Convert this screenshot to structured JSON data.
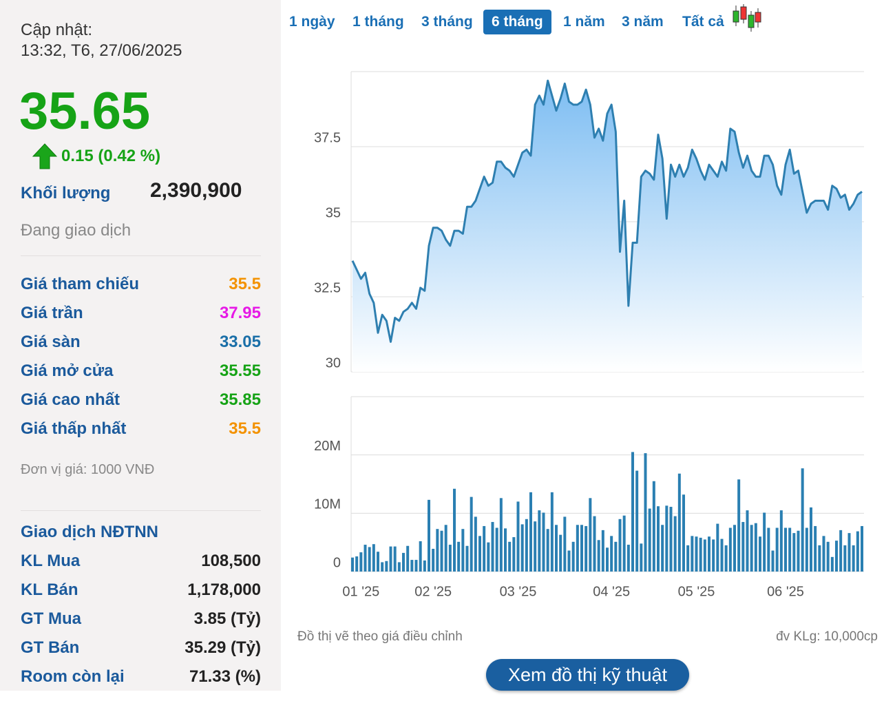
{
  "header": {
    "update_label": "Cập nhật:",
    "update_time": "13:32, T6, 27/06/2025",
    "price": "35.65",
    "change": "0.15 (0.42 %)",
    "volume_label": "Khối lượng",
    "volume": "2,390,900",
    "status": "Đang giao dịch"
  },
  "price_table": [
    {
      "label": "Giá tham chiếu",
      "value": "35.5",
      "color": "#f39200"
    },
    {
      "label": "Giá trần",
      "value": "37.95",
      "color": "#e619e6"
    },
    {
      "label": "Giá sàn",
      "value": "33.05",
      "color": "#1a6fa8"
    },
    {
      "label": "Giá mở cửa",
      "value": "35.55",
      "color": "#16a316"
    },
    {
      "label": "Giá cao nhất",
      "value": "35.85",
      "color": "#16a316"
    },
    {
      "label": "Giá thấp nhất",
      "value": "35.5",
      "color": "#f39200"
    }
  ],
  "unit_note": "Đơn vị giá: 1000 VNĐ",
  "foreign": {
    "title": "Giao dịch NĐTNN",
    "rows": [
      {
        "label": "KL Mua",
        "value": "108,500"
      },
      {
        "label": "KL Bán",
        "value": "1,178,000"
      },
      {
        "label": "GT Mua",
        "value": "3.85 (Tỷ)"
      },
      {
        "label": "GT Bán",
        "value": "35.29 (Tỷ)"
      },
      {
        "label": "Room còn lại",
        "value": "71.33 (%)"
      }
    ]
  },
  "tabs": [
    "1 ngày",
    "1 tháng",
    "3 tháng",
    "6 tháng",
    "1 năm",
    "3 năm",
    "Tất cả"
  ],
  "active_tab": 3,
  "chart_data": [
    {
      "type": "area",
      "color": "#2e7fb0",
      "ylim": [
        30,
        40
      ],
      "yticks": [
        30,
        32.5,
        35,
        37.5
      ],
      "grid": true,
      "values": [
        33.7,
        33.4,
        33.1,
        33.3,
        32.6,
        32.3,
        31.3,
        31.9,
        31.7,
        31.0,
        31.8,
        31.7,
        32.0,
        32.1,
        32.3,
        32.1,
        32.8,
        32.7,
        34.2,
        34.8,
        34.8,
        34.7,
        34.4,
        34.2,
        34.7,
        34.7,
        34.6,
        35.5,
        35.5,
        35.7,
        36.1,
        36.5,
        36.2,
        36.3,
        37.0,
        37.0,
        36.8,
        36.7,
        36.5,
        36.9,
        37.3,
        37.4,
        37.2,
        38.9,
        39.2,
        38.9,
        39.7,
        39.2,
        38.7,
        39.1,
        39.6,
        39.0,
        38.9,
        38.9,
        39.0,
        39.4,
        38.9,
        37.8,
        38.1,
        37.7,
        38.6,
        38.9,
        38.0,
        34.0,
        35.7,
        32.2,
        34.3,
        34.3,
        36.5,
        36.7,
        36.6,
        36.4,
        37.9,
        37.1,
        35.1,
        36.9,
        36.5,
        36.9,
        36.5,
        36.8,
        37.4,
        37.1,
        36.7,
        36.4,
        36.9,
        36.7,
        36.5,
        37.0,
        36.7,
        38.1,
        38.0,
        37.3,
        36.8,
        37.2,
        36.7,
        36.5,
        36.5,
        37.2,
        37.2,
        36.9,
        36.2,
        35.9,
        36.9,
        37.4,
        36.6,
        36.7,
        36.0,
        35.3,
        35.6,
        35.7,
        35.7,
        35.7,
        35.4,
        36.2,
        36.1,
        35.8,
        35.9,
        35.4,
        35.6,
        35.9,
        36.0
      ]
    },
    {
      "type": "bar",
      "color": "#2a7fb2",
      "ylim": [
        0,
        30000000
      ],
      "grid": true,
      "yticks": [
        0,
        {
          "value": 10000000,
          "label": "10M"
        },
        {
          "value": 20000000,
          "label": "20M"
        }
      ],
      "categories": [
        null,
        null,
        "01 '25",
        null,
        null,
        null,
        null,
        null,
        null,
        null,
        null,
        null,
        null,
        null,
        null,
        null,
        null,
        null,
        null,
        "02 '25",
        null,
        null,
        null,
        null,
        null,
        null,
        null,
        null,
        null,
        null,
        null,
        null,
        null,
        null,
        null,
        null,
        null,
        null,
        null,
        "03 '25",
        null,
        null,
        null,
        null,
        null,
        null,
        null,
        null,
        null,
        null,
        null,
        null,
        null,
        null,
        null,
        null,
        null,
        null,
        null,
        null,
        null,
        "04 '25",
        null,
        null,
        null,
        null,
        null,
        null,
        null,
        null,
        null,
        null,
        null,
        null,
        null,
        null,
        null,
        null,
        null,
        null,
        null,
        "05 '25",
        null,
        null,
        null,
        null,
        null,
        null,
        null,
        null,
        null,
        null,
        null,
        null,
        null,
        null,
        null,
        null,
        null,
        null,
        null,
        null,
        "06 '25",
        null,
        null,
        null,
        null,
        null,
        null,
        null,
        null,
        null,
        null,
        null,
        null,
        null,
        null,
        null,
        null,
        null,
        null
      ],
      "values": [
        2400000,
        2600000,
        3300000,
        4600000,
        4200000,
        4700000,
        3400000,
        1600000,
        1800000,
        4300000,
        4300000,
        1600000,
        3200000,
        4400000,
        2000000,
        2000000,
        5200000,
        1900000,
        12300000,
        3900000,
        7300000,
        7000000,
        8000000,
        4600000,
        14200000,
        5100000,
        7300000,
        4400000,
        12800000,
        9400000,
        6100000,
        7800000,
        5000000,
        8500000,
        7500000,
        12600000,
        7400000,
        5100000,
        5900000,
        12000000,
        8100000,
        9000000,
        13600000,
        8600000,
        10500000,
        10100000,
        7300000,
        13600000,
        8000000,
        6300000,
        9400000,
        3600000,
        5100000,
        8000000,
        8000000,
        7800000,
        12600000,
        9500000,
        5400000,
        7100000,
        4100000,
        6100000,
        5100000,
        9000000,
        9600000,
        4600000,
        20500000,
        17300000,
        4800000,
        20300000,
        10800000,
        15500000,
        11200000,
        8000000,
        11300000,
        11100000,
        9500000,
        16800000,
        13200000,
        4500000,
        6100000,
        6000000,
        5800000,
        5500000,
        6000000,
        5500000,
        8200000,
        5600000,
        4500000,
        7500000,
        8000000,
        15800000,
        8500000,
        10500000,
        8000000,
        8300000,
        6000000,
        10100000,
        7500000,
        3600000,
        7500000,
        10500000,
        7500000,
        7500000,
        6600000,
        7000000,
        17700000,
        7500000,
        11000000,
        7800000,
        4500000,
        6100000,
        5100000,
        2500000,
        5300000,
        7100000,
        4500000,
        6600000,
        4500000,
        6900000,
        7800000
      ]
    }
  ],
  "footer": {
    "note": "Đồ thị vẽ theo giá điều chỉnh",
    "unit": "đv KLg: 10,000cp",
    "button": "Xem đồ thị kỹ thuật"
  }
}
